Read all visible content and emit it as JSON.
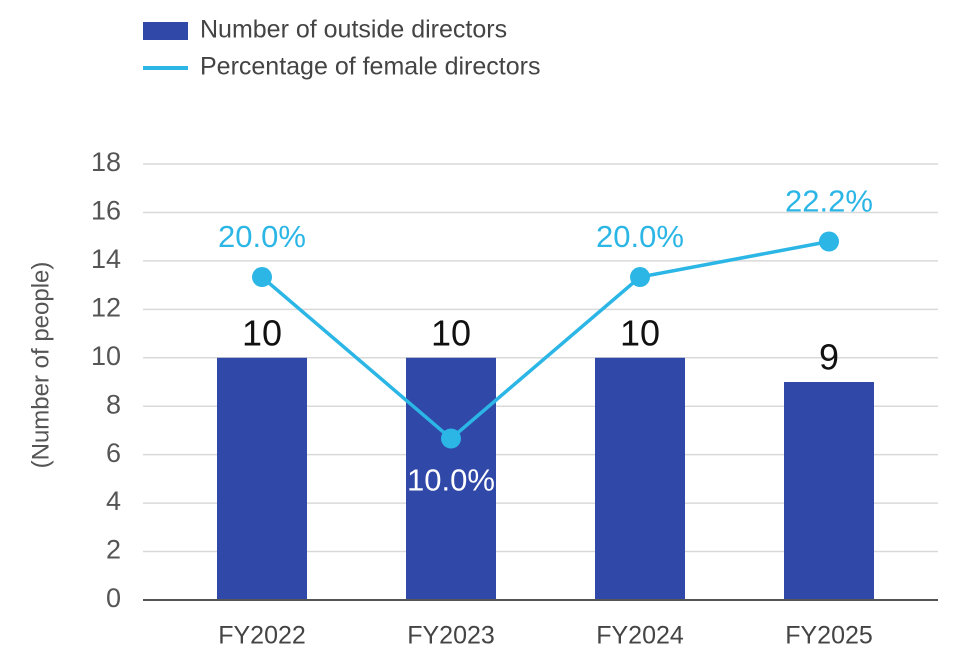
{
  "chart_data": {
    "type": "bar_line",
    "categories": [
      "FY2022",
      "FY2023",
      "FY2024",
      "FY2025"
    ],
    "series": [
      {
        "name": "Number of outside directors",
        "type": "bar",
        "color": "#3048a8",
        "values": [
          10,
          10,
          10,
          9
        ]
      },
      {
        "name": "Percentage of female directors",
        "type": "line",
        "axis": "y2",
        "color": "#2bb6e6",
        "values": [
          20.0,
          10.0,
          20.0,
          22.2
        ],
        "value_labels": [
          "20.0%",
          "10.0%",
          "20.0%",
          "22.2%"
        ]
      }
    ],
    "y_label": "(Number of people)",
    "ylim": [
      0,
      18
    ],
    "yticks": [
      0,
      2,
      4,
      6,
      8,
      10,
      12,
      14,
      16,
      18
    ],
    "y2lim": [
      0,
      27
    ],
    "grid": true,
    "legend": "top-left"
  }
}
